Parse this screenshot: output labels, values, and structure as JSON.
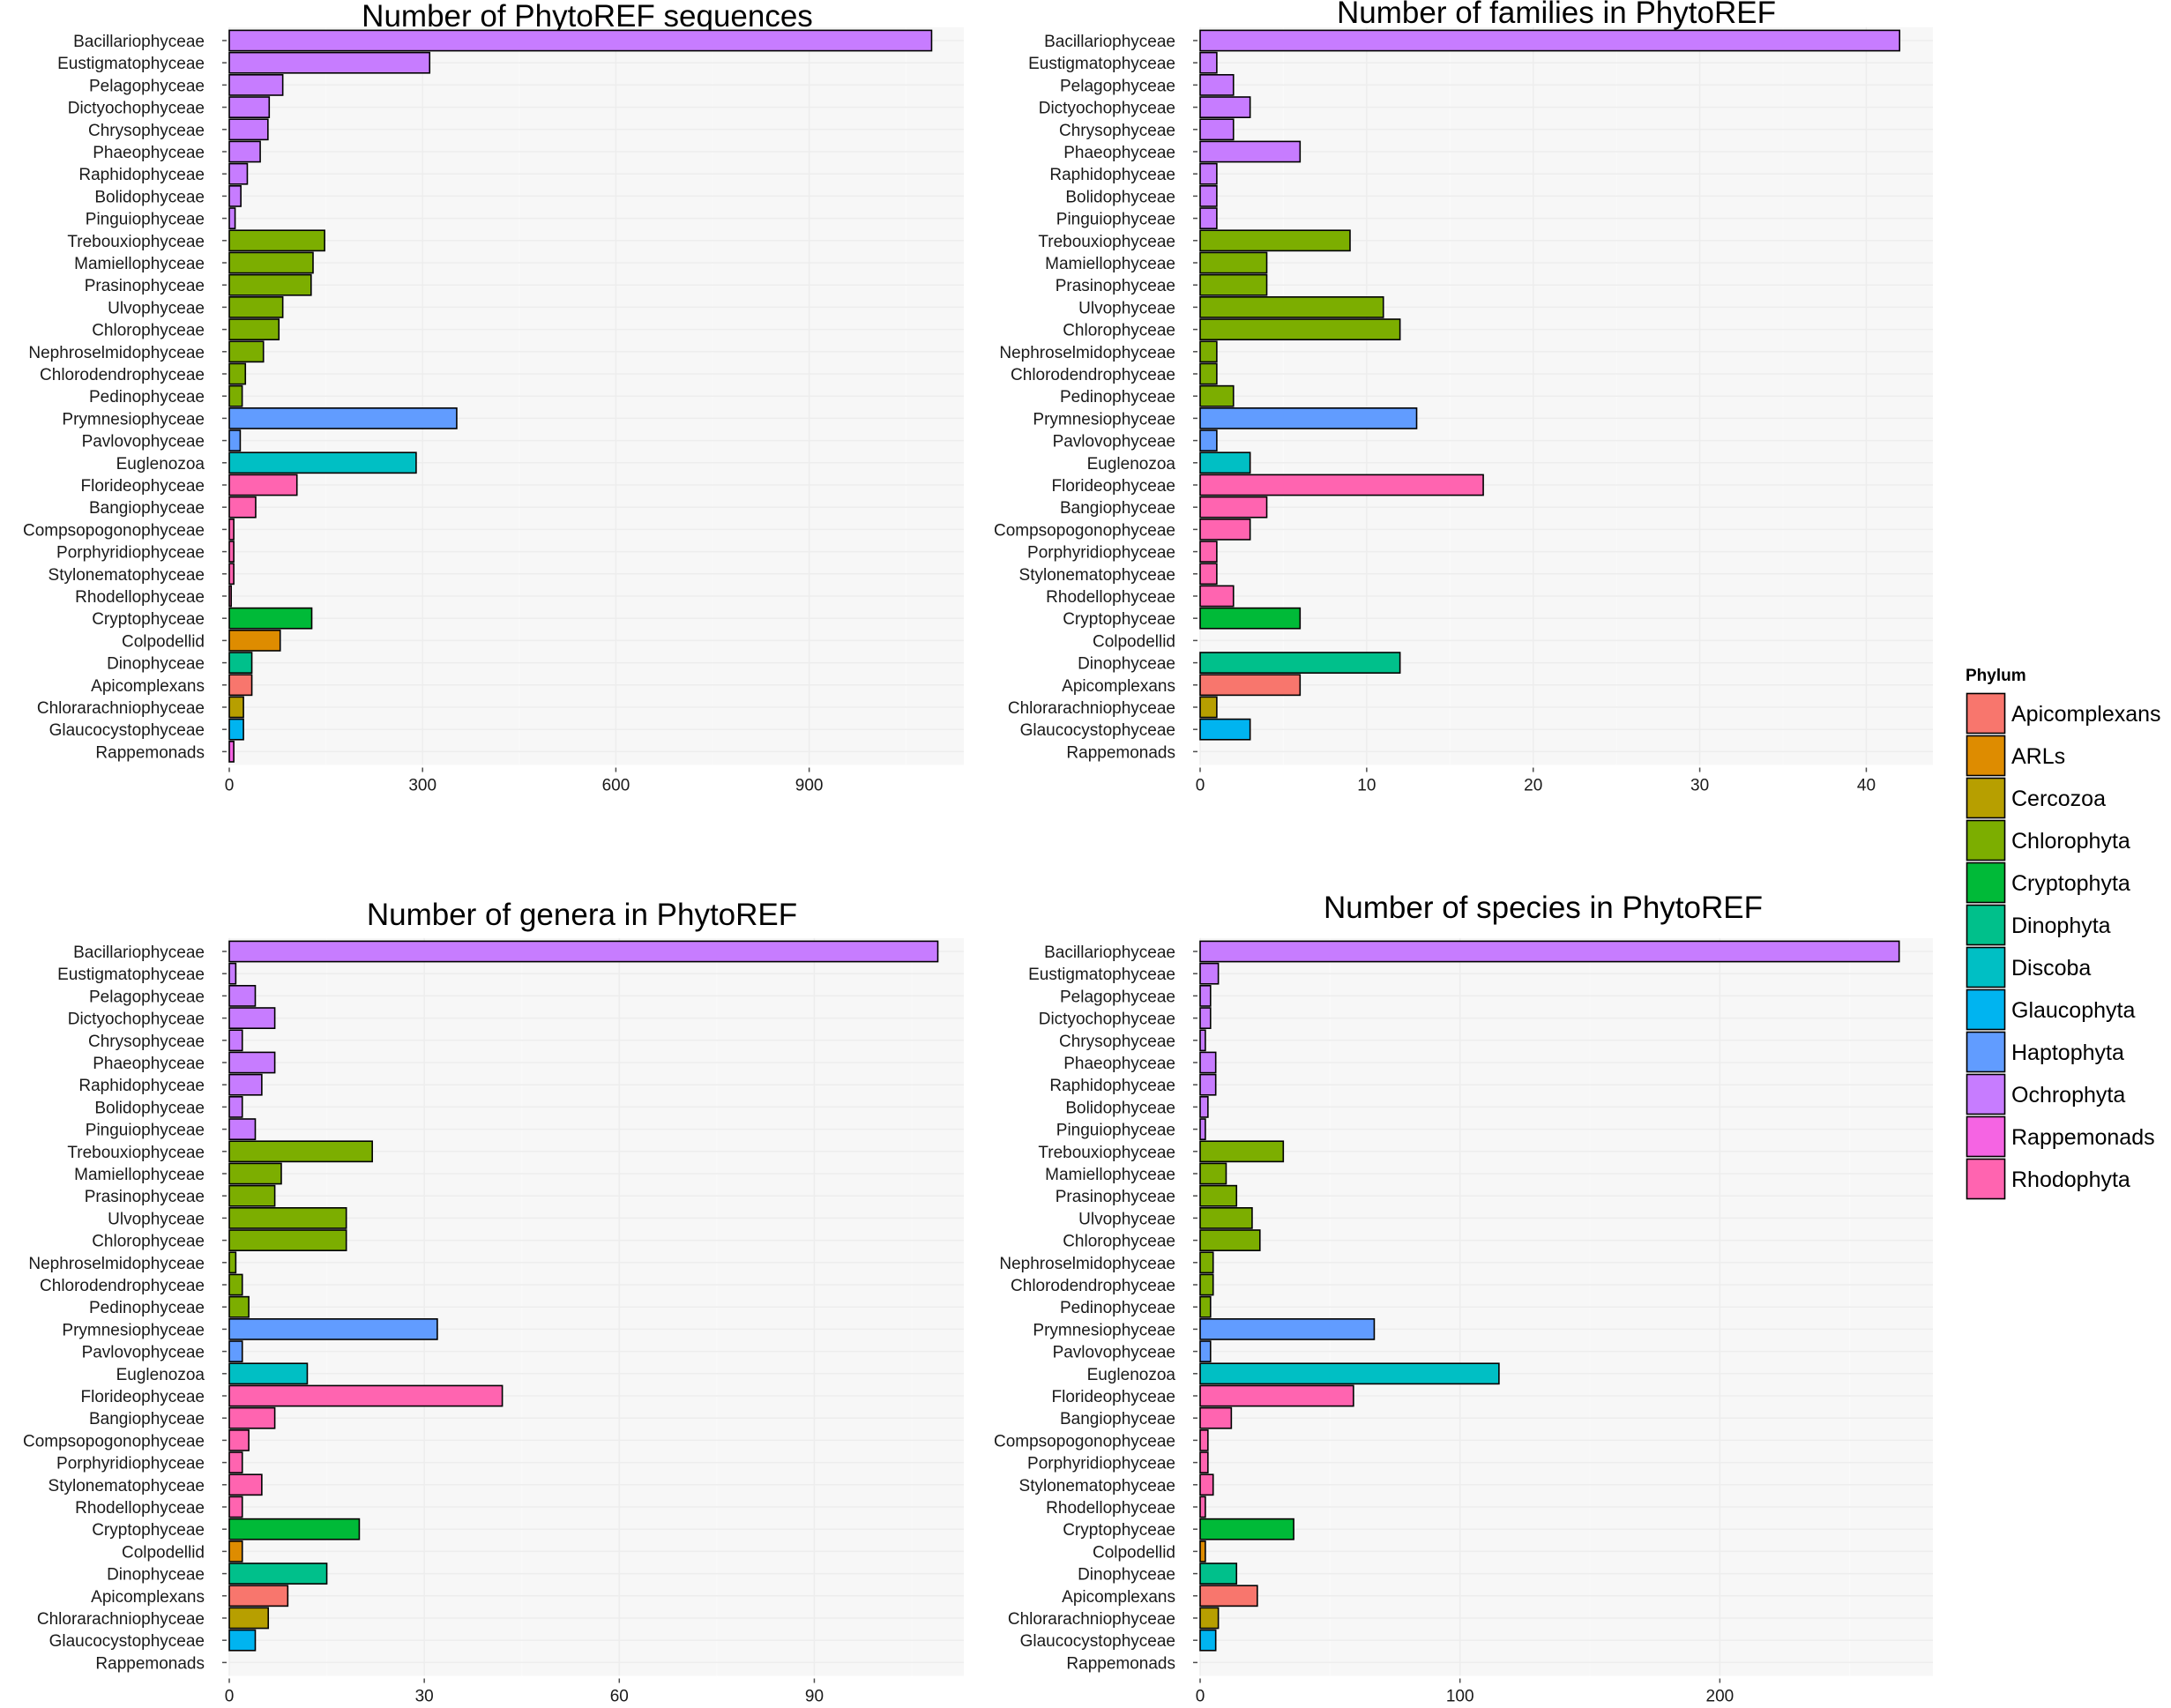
{
  "categories": [
    "Bacillariophyceae",
    "Eustigmatophyceae",
    "Pelagophyceae",
    "Dictyochophyceae",
    "Chrysophyceae",
    "Phaeophyceae",
    "Raphidophyceae",
    "Bolidophyceae",
    "Pinguiophyceae",
    "Trebouxiophyceae",
    "Mamiellophyceae",
    "Prasinophyceae",
    "Ulvophyceae",
    "Chlorophyceae",
    "Nephroselmidophyceae",
    "Chlorodendrophyceae",
    "Pedinophyceae",
    "Prymnesiophyceae",
    "Pavlovophyceae",
    "Euglenozoa",
    "Florideophyceae",
    "Bangiophyceae",
    "Compsopogonophyceae",
    "Porphyridiophyceae",
    "Stylonematophyceae",
    "Rhodellophyceae",
    "Cryptophyceae",
    "Colpodellid",
    "Dinophyceae",
    "Apicomplexans",
    "Chlorarachniophyceae",
    "Glaucocystophyceae",
    "Rappemonads"
  ],
  "category_phylum": [
    "Ochrophyta",
    "Ochrophyta",
    "Ochrophyta",
    "Ochrophyta",
    "Ochrophyta",
    "Ochrophyta",
    "Ochrophyta",
    "Ochrophyta",
    "Ochrophyta",
    "Chlorophyta",
    "Chlorophyta",
    "Chlorophyta",
    "Chlorophyta",
    "Chlorophyta",
    "Chlorophyta",
    "Chlorophyta",
    "Chlorophyta",
    "Haptophyta",
    "Haptophyta",
    "Discoba",
    "Rhodophyta",
    "Rhodophyta",
    "Rhodophyta",
    "Rhodophyta",
    "Rhodophyta",
    "Rhodophyta",
    "Cryptophyta",
    "ARLs",
    "Dinophyta",
    "Apicomplexans",
    "Cercozoa",
    "Glaucophyta",
    "Rappemonads"
  ],
  "legend": {
    "title": "Phylum",
    "items": [
      {
        "label": "Apicomplexans",
        "color": "#F8766D"
      },
      {
        "label": "ARLs",
        "color": "#DE8C00"
      },
      {
        "label": "Cercozoa",
        "color": "#B79F00"
      },
      {
        "label": "Chlorophyta",
        "color": "#7CAE00"
      },
      {
        "label": "Cryptophyta",
        "color": "#00BA38"
      },
      {
        "label": "Dinophyta",
        "color": "#00C08B"
      },
      {
        "label": "Discoba",
        "color": "#00BFC4"
      },
      {
        "label": "Glaucophyta",
        "color": "#00B4F0"
      },
      {
        "label": "Haptophyta",
        "color": "#619CFF"
      },
      {
        "label": "Ochrophyta",
        "color": "#C77CFF"
      },
      {
        "label": "Rappemonads",
        "color": "#F564E3"
      },
      {
        "label": "Rhodophyta",
        "color": "#FF64B0"
      }
    ]
  },
  "chart_data": [
    {
      "type": "bar",
      "orientation": "horizontal",
      "title": "Number of PhytoREF sequences",
      "xlim": [
        0,
        1140
      ],
      "xticks": [
        0,
        300,
        600,
        900
      ],
      "values": [
        1090,
        311,
        83,
        62,
        60,
        48,
        28,
        18,
        9,
        148,
        130,
        127,
        83,
        77,
        53,
        25,
        20,
        353,
        17,
        290,
        105,
        41,
        7,
        7,
        7,
        3,
        128,
        79,
        35,
        35,
        22,
        22,
        7
      ]
    },
    {
      "type": "bar",
      "orientation": "horizontal",
      "title": "Number of families in PhytoREF",
      "xlim": [
        0,
        44
      ],
      "xticks": [
        0,
        10,
        20,
        30,
        40
      ],
      "values": [
        42,
        1,
        2,
        3,
        2,
        6,
        1,
        1,
        1,
        9,
        4,
        4,
        11,
        12,
        1,
        1,
        2,
        13,
        1,
        3,
        17,
        4,
        3,
        1,
        1,
        2,
        6,
        0,
        12,
        6,
        1,
        3,
        0
      ]
    },
    {
      "type": "bar",
      "orientation": "horizontal",
      "title": "Number of genera in PhytoREF",
      "xlim": [
        0,
        113
      ],
      "xticks": [
        0,
        30,
        60,
        90
      ],
      "values": [
        109,
        1,
        4,
        7,
        2,
        7,
        5,
        2,
        4,
        22,
        8,
        7,
        18,
        18,
        1,
        2,
        3,
        32,
        2,
        12,
        42,
        7,
        3,
        2,
        5,
        2,
        20,
        2,
        15,
        9,
        6,
        4,
        0
      ]
    },
    {
      "type": "bar",
      "orientation": "horizontal",
      "title": "Number of species in PhytoREF",
      "xlim": [
        0,
        282
      ],
      "xticks": [
        0,
        100,
        200
      ],
      "values": [
        269,
        7,
        4,
        4,
        2,
        6,
        6,
        3,
        2,
        32,
        10,
        14,
        20,
        23,
        5,
        5,
        4,
        67,
        4,
        115,
        59,
        12,
        3,
        3,
        5,
        2,
        36,
        2,
        14,
        22,
        7,
        6,
        0
      ]
    }
  ]
}
